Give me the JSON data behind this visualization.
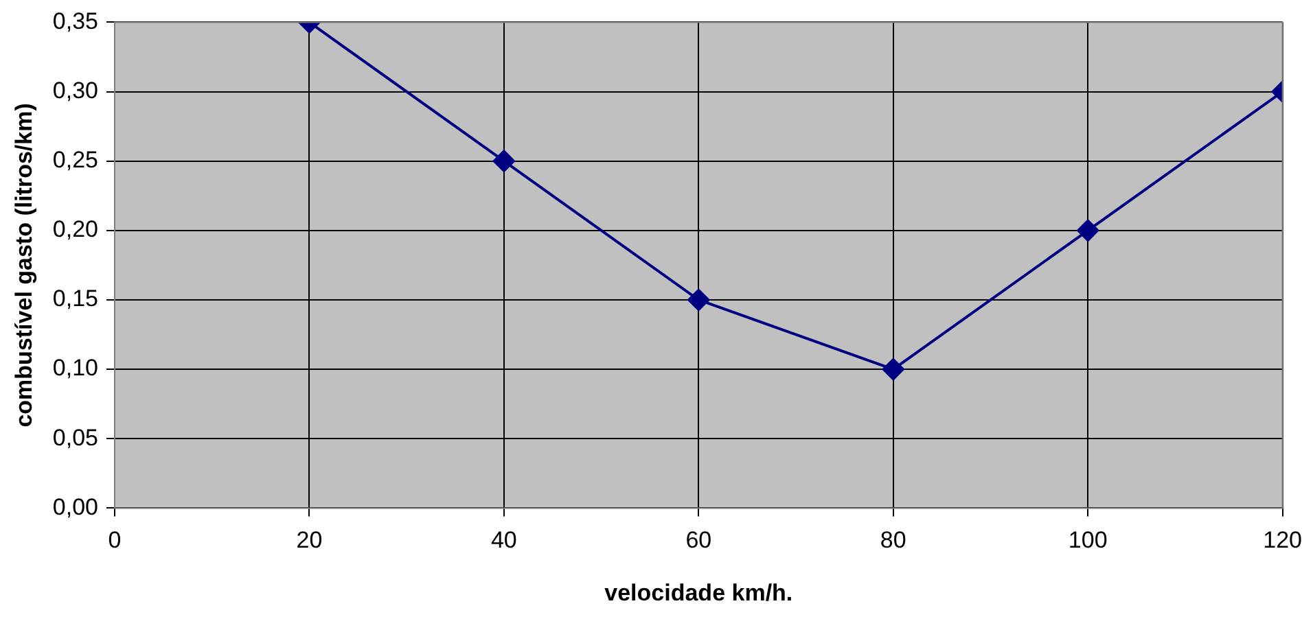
{
  "chart_data": {
    "type": "line",
    "xlabel": "velocidade km/h.",
    "ylabel": "combustível gasto (litros/km)",
    "x": [
      20,
      40,
      60,
      80,
      100,
      120
    ],
    "series": [
      {
        "color": "#000080",
        "values": [
          0.35,
          0.25,
          0.15,
          0.1,
          0.2,
          0.3
        ]
      }
    ],
    "xlim": [
      0,
      120
    ],
    "xticks": [
      0,
      20,
      40,
      60,
      80,
      100,
      120
    ],
    "ylim": [
      0,
      0.35
    ],
    "yticks": [
      {
        "value": 0,
        "label": "0,00"
      },
      {
        "value": 0.05,
        "label": "0,05"
      },
      {
        "value": 0.1,
        "label": "0,10"
      },
      {
        "value": 0.15,
        "label": "0,15"
      },
      {
        "value": 0.2,
        "label": "0,20"
      },
      {
        "value": 0.25,
        "label": "0,25"
      },
      {
        "value": 0.3,
        "label": "0,30"
      },
      {
        "value": 0.35,
        "label": "0,35"
      }
    ],
    "grid": true,
    "legend": false,
    "marker": "diamond",
    "line_style": "solid"
  }
}
